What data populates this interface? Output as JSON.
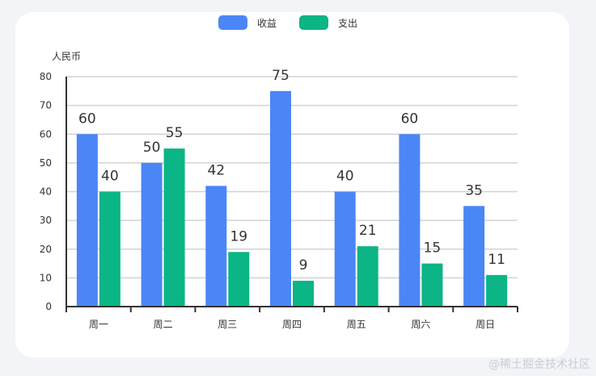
{
  "chart_data": {
    "type": "bar",
    "categories": [
      "周一",
      "周二",
      "周三",
      "周四",
      "周五",
      "周六",
      "周日"
    ],
    "series": [
      {
        "name": "收益",
        "values": [
          60,
          50,
          42,
          75,
          40,
          60,
          35
        ],
        "color": "#4b86f7"
      },
      {
        "name": "支出",
        "values": [
          40,
          55,
          19,
          9,
          21,
          15,
          11
        ],
        "color": "#0bb585"
      }
    ],
    "ylabel": "人民币",
    "ylim": [
      0,
      80
    ],
    "yticks": [
      0,
      10,
      20,
      30,
      40,
      50,
      60,
      70,
      80
    ],
    "grid": true,
    "legend_position": "top-center"
  },
  "colors": {
    "background": "#f3f4f7",
    "card": "#ffffff",
    "grid": "#d3d3d3",
    "axis": "#333333"
  },
  "watermark": "@稀土掘金技术社区"
}
